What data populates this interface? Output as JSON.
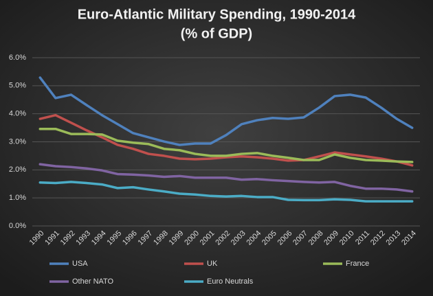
{
  "chart_data": {
    "type": "line",
    "title": "Euro-Atlantic Military Spending, 1990-2014",
    "subtitle": "(% of GDP)",
    "categories": [
      "1990",
      "1991",
      "1992",
      "1993",
      "1994",
      "1995",
      "1996",
      "1997",
      "1998",
      "1999",
      "2000",
      "2001",
      "2002",
      "2003",
      "2004",
      "2005",
      "2006",
      "2007",
      "2008",
      "2009",
      "2010",
      "2011",
      "2012",
      "2013",
      "2014"
    ],
    "series": [
      {
        "name": "USA",
        "color": "#4f81bd",
        "values": [
          5.29,
          4.56,
          4.68,
          4.31,
          3.95,
          3.63,
          3.31,
          3.16,
          3.01,
          2.89,
          2.94,
          2.94,
          3.24,
          3.63,
          3.77,
          3.85,
          3.82,
          3.87,
          4.22,
          4.63,
          4.68,
          4.58,
          4.22,
          3.82,
          3.5
        ]
      },
      {
        "name": "UK",
        "color": "#c0504d",
        "values": [
          3.82,
          3.95,
          3.68,
          3.41,
          3.16,
          2.89,
          2.75,
          2.57,
          2.5,
          2.4,
          2.38,
          2.4,
          2.45,
          2.48,
          2.45,
          2.4,
          2.33,
          2.35,
          2.48,
          2.62,
          2.55,
          2.48,
          2.4,
          2.3,
          2.16
        ]
      },
      {
        "name": "France",
        "color": "#9bbb59",
        "values": [
          3.46,
          3.46,
          3.28,
          3.28,
          3.26,
          3.04,
          2.97,
          2.92,
          2.75,
          2.7,
          2.57,
          2.5,
          2.5,
          2.57,
          2.6,
          2.5,
          2.43,
          2.35,
          2.35,
          2.55,
          2.43,
          2.35,
          2.33,
          2.3,
          2.28
        ]
      },
      {
        "name": "Other NATO",
        "color": "#8064a2",
        "values": [
          2.2,
          2.13,
          2.1,
          2.05,
          1.98,
          1.85,
          1.83,
          1.8,
          1.75,
          1.78,
          1.72,
          1.72,
          1.72,
          1.65,
          1.67,
          1.63,
          1.6,
          1.57,
          1.55,
          1.57,
          1.43,
          1.33,
          1.33,
          1.3,
          1.23
        ]
      },
      {
        "name": "Euro Neutrals",
        "color": "#4bacc6",
        "values": [
          1.55,
          1.53,
          1.57,
          1.53,
          1.48,
          1.35,
          1.38,
          1.3,
          1.23,
          1.15,
          1.12,
          1.07,
          1.05,
          1.07,
          1.03,
          1.03,
          0.93,
          0.92,
          0.92,
          0.95,
          0.93,
          0.88,
          0.88,
          0.88,
          0.88
        ]
      }
    ],
    "ylim": [
      0,
      6
    ],
    "yticks": [
      {
        "value": 0,
        "label": "0.0%"
      },
      {
        "value": 1,
        "label": "1.0%"
      },
      {
        "value": 2,
        "label": "2.0%"
      },
      {
        "value": 3,
        "label": "3.0%"
      },
      {
        "value": 4,
        "label": "4.0%"
      },
      {
        "value": 5,
        "label": "5.0%"
      },
      {
        "value": 6,
        "label": "6.0%"
      }
    ],
    "grid": true
  }
}
